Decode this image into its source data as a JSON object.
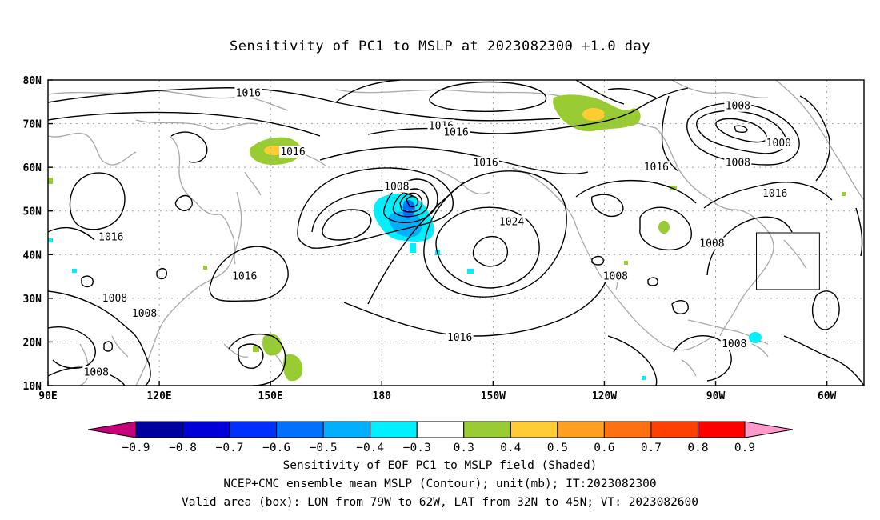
{
  "title": "Sensitivity of PC1 to MSLP at 2023082300 +1.0 day",
  "map": {
    "lat_labels": [
      "80N",
      "70N",
      "60N",
      "50N",
      "40N",
      "30N",
      "20N",
      "10N"
    ],
    "lon_labels": [
      "90E",
      "120E",
      "150E",
      "180",
      "150W",
      "120W",
      "90W",
      "60W"
    ],
    "contour_labels": [
      {
        "text": "1016",
        "lon": 144,
        "lat": 77
      },
      {
        "text": "1016",
        "lon": -164,
        "lat": 69.5
      },
      {
        "text": "1016",
        "lon": -160,
        "lat": 68
      },
      {
        "text": "1016",
        "lon": 156,
        "lat": 63.5
      },
      {
        "text": "1016",
        "lon": -152,
        "lat": 61
      },
      {
        "text": "1008",
        "lon": -176,
        "lat": 55.5
      },
      {
        "text": "1024",
        "lon": -145,
        "lat": 47.5
      },
      {
        "text": "1016",
        "lon": 107,
        "lat": 44
      },
      {
        "text": "1016",
        "lon": 143,
        "lat": 35
      },
      {
        "text": "1008",
        "lon": -91,
        "lat": 42.5
      },
      {
        "text": "1008",
        "lon": -117,
        "lat": 35
      },
      {
        "text": "1008",
        "lon": -84,
        "lat": 74
      },
      {
        "text": "1000",
        "lon": -73,
        "lat": 65.5
      },
      {
        "text": "1016",
        "lon": -106,
        "lat": 60
      },
      {
        "text": "1008",
        "lon": -84,
        "lat": 61
      },
      {
        "text": "1016",
        "lon": -74,
        "lat": 54
      },
      {
        "text": "1008",
        "lon": 108,
        "lat": 30
      },
      {
        "text": "1008",
        "lon": 116,
        "lat": 26.5
      },
      {
        "text": "1016",
        "lon": -159,
        "lat": 21
      },
      {
        "text": "1008",
        "lon": -85,
        "lat": 19.5
      },
      {
        "text": "1008",
        "lon": 103,
        "lat": 13
      }
    ],
    "valid_box": {
      "lon_w": -79,
      "lon_e": -62,
      "lat_s": 32,
      "lat_n": 45
    }
  },
  "colorbar": {
    "labels": [
      "−0.9",
      "−0.8",
      "−0.7",
      "−0.6",
      "−0.5",
      "−0.4",
      "−0.3",
      "0.3",
      "0.4",
      "0.5",
      "0.6",
      "0.7",
      "0.8",
      "0.9"
    ],
    "colors": [
      "#0000a0",
      "#0000d8",
      "#0030ff",
      "#0070ff",
      "#00b0ff",
      "#00f0ff",
      "#ffffff",
      "#99cc33",
      "#ffcc33",
      "#ffa020",
      "#ff7010",
      "#ff4000",
      "#ff0000"
    ],
    "low_end_color": "#c8007a",
    "high_end_color": "#ff99cc"
  },
  "captions": {
    "line1": "Sensitivity of EOF PC1 to MSLP field (Shaded)",
    "line2": "NCEP+CMC ensemble mean MSLP (Contour); unit(mb); IT:2023082300",
    "line3": "Valid area (box): LON from 79W to 62W, LAT from 32N to 45N; VT: 2023082600"
  }
}
